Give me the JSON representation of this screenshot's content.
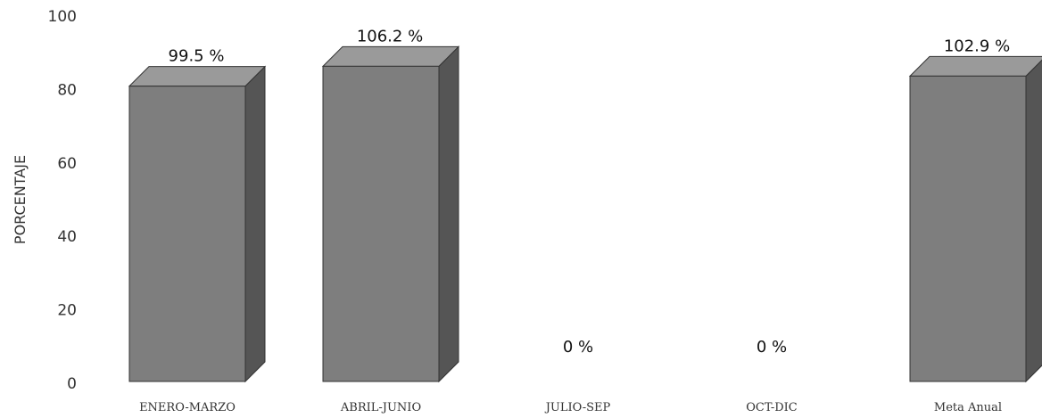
{
  "chart_data": {
    "type": "bar",
    "ylabel": "PORCENTAJE",
    "ylim": [
      0,
      100
    ],
    "yticks": [
      0,
      20,
      40,
      60,
      80,
      100
    ],
    "categories": [
      "ENERO-MARZO",
      "ABRIL-JUNIO",
      "JULIO-SEP",
      "OCT-DIC",
      "Meta Anual"
    ],
    "values": [
      99.5,
      106.2,
      0,
      0,
      102.9
    ],
    "data_labels": [
      "99.5 %",
      "106.2 %",
      "0 %",
      "0 %",
      "102.9 %"
    ],
    "grid": false,
    "style": "3d",
    "colors": {
      "bar_front": "#7e7e7e",
      "bar_side": "#555555",
      "bar_top": "#9a9a9a"
    }
  }
}
